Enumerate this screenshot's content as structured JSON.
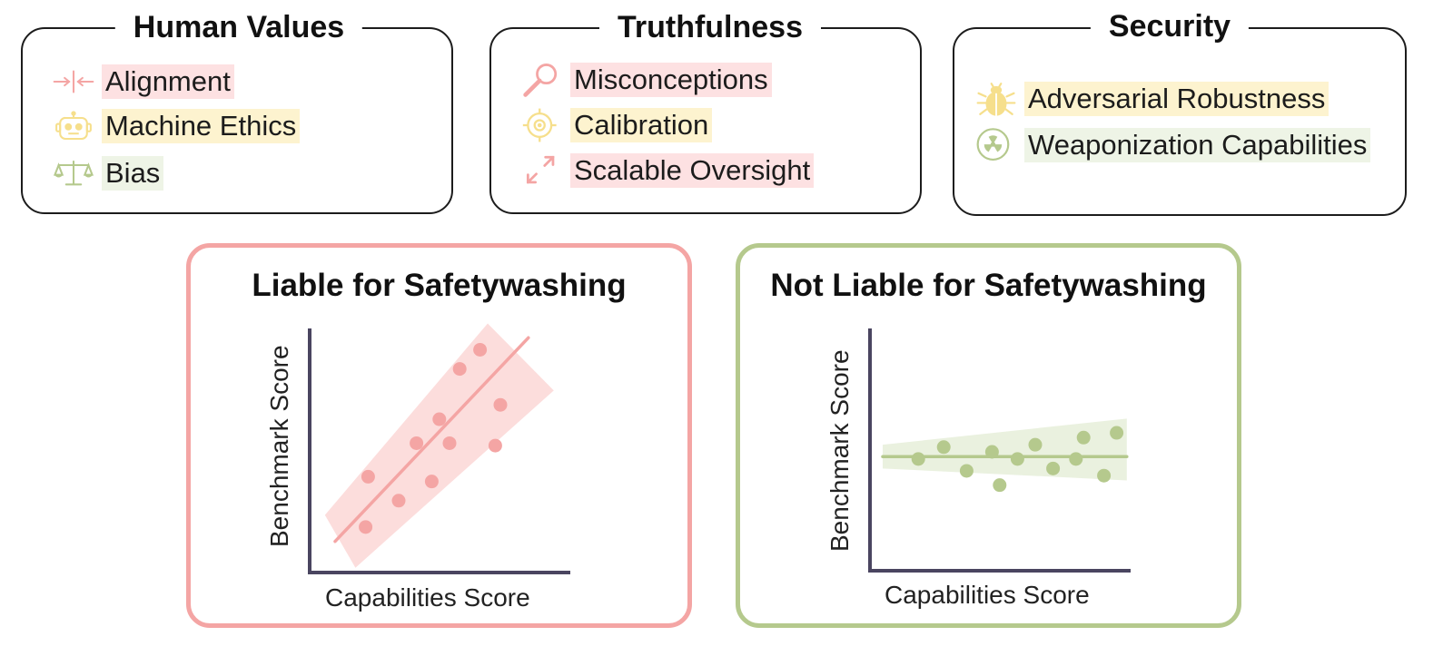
{
  "categories": [
    {
      "title": "Human Values",
      "items": [
        {
          "label": "Alignment",
          "icon": "arrows-inward-icon",
          "highlight": "#fde1e2"
        },
        {
          "label": "Machine Ethics",
          "icon": "robot-icon",
          "highlight": "#fdf3cf"
        },
        {
          "label": "Bias",
          "icon": "scales-icon",
          "highlight": "#eef4e6"
        }
      ]
    },
    {
      "title": "Truthfulness",
      "items": [
        {
          "label": "Misconceptions",
          "icon": "magnifier-icon",
          "highlight": "#fde1e2"
        },
        {
          "label": "Calibration",
          "icon": "target-icon",
          "highlight": "#fdf3cf"
        },
        {
          "label": "Scalable Oversight",
          "icon": "expand-arrows-icon",
          "highlight": "#fde1e2"
        }
      ]
    },
    {
      "title": "Security",
      "items": [
        {
          "label": "Adversarial Robustness",
          "icon": "bug-icon",
          "highlight": "#fdf3cf"
        },
        {
          "label": "Weaponization Capabilities",
          "icon": "radiation-icon",
          "highlight": "#eef4e6"
        }
      ]
    }
  ],
  "colors": {
    "pink": "#f4a5a4",
    "yellow": "#f6df8c",
    "green": "#b5c98d",
    "axis": "#4a4560"
  },
  "chart_data": [
    {
      "type": "scatter",
      "title": "Liable for Safetywashing",
      "xlabel": "Capabilities Score",
      "ylabel": "Benchmark Score",
      "xlim": [
        0,
        10
      ],
      "ylim": [
        0,
        10
      ],
      "points": [
        {
          "x": 2.2,
          "y": 1.9
        },
        {
          "x": 2.3,
          "y": 4.0
        },
        {
          "x": 3.5,
          "y": 3.0
        },
        {
          "x": 4.2,
          "y": 5.4
        },
        {
          "x": 4.8,
          "y": 3.8
        },
        {
          "x": 5.1,
          "y": 6.4
        },
        {
          "x": 5.5,
          "y": 5.4
        },
        {
          "x": 5.9,
          "y": 8.5
        },
        {
          "x": 6.7,
          "y": 9.3
        },
        {
          "x": 7.3,
          "y": 5.3
        },
        {
          "x": 7.5,
          "y": 7.0
        }
      ],
      "fit": {
        "x0": 1.0,
        "y0": 1.3,
        "x1": 8.6,
        "y1": 9.8
      },
      "band": [
        [
          0.6,
          2.4
        ],
        [
          7.0,
          10.4
        ],
        [
          9.6,
          7.6
        ],
        [
          1.8,
          0.2
        ]
      ]
    },
    {
      "type": "scatter",
      "title": "Not Liable for Safetywashing",
      "xlabel": "Capabilities Score",
      "ylabel": "Benchmark Score",
      "xlim": [
        0,
        10
      ],
      "ylim": [
        0,
        10
      ],
      "points": [
        {
          "x": 1.9,
          "y": 4.7
        },
        {
          "x": 2.9,
          "y": 5.2
        },
        {
          "x": 3.8,
          "y": 4.2
        },
        {
          "x": 4.8,
          "y": 5.0
        },
        {
          "x": 5.1,
          "y": 3.6
        },
        {
          "x": 5.8,
          "y": 4.7
        },
        {
          "x": 6.5,
          "y": 5.3
        },
        {
          "x": 7.2,
          "y": 4.3
        },
        {
          "x": 8.1,
          "y": 4.7
        },
        {
          "x": 8.4,
          "y": 5.6
        },
        {
          "x": 9.2,
          "y": 4.0
        },
        {
          "x": 9.7,
          "y": 5.8
        }
      ],
      "fit": {
        "x0": 0.5,
        "y0": 4.8,
        "x1": 10.1,
        "y1": 4.8
      },
      "band": [
        [
          0.5,
          5.3
        ],
        [
          10.1,
          6.4
        ],
        [
          10.1,
          3.8
        ],
        [
          0.5,
          4.3
        ]
      ]
    }
  ]
}
